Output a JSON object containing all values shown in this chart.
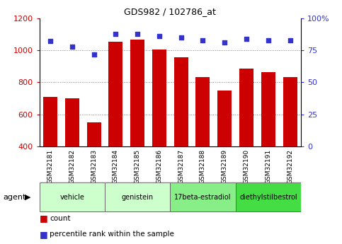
{
  "title": "GDS982 / 102786_at",
  "samples": [
    "GSM32181",
    "GSM32182",
    "GSM32183",
    "GSM32184",
    "GSM32185",
    "GSM32186",
    "GSM32187",
    "GSM32188",
    "GSM32189",
    "GSM32190",
    "GSM32191",
    "GSM32192"
  ],
  "counts": [
    710,
    700,
    550,
    1055,
    1065,
    1005,
    955,
    835,
    750,
    885,
    865,
    835
  ],
  "percentile_ranks": [
    82,
    78,
    72,
    88,
    88,
    86,
    85,
    83,
    81,
    84,
    83,
    83
  ],
  "bar_color": "#cc0000",
  "dot_color": "#3333cc",
  "ylim_left": [
    400,
    1200
  ],
  "yticks_left": [
    400,
    600,
    800,
    1000,
    1200
  ],
  "ylim_right": [
    0,
    100
  ],
  "yticks_right": [
    0,
    25,
    50,
    75,
    100
  ],
  "ylabel_left_color": "#cc0000",
  "ylabel_right_color": "#3333cc",
  "groups": [
    {
      "label": "vehicle",
      "start": 0,
      "end": 3,
      "color": "#ccffcc"
    },
    {
      "label": "genistein",
      "start": 3,
      "end": 6,
      "color": "#ccffcc"
    },
    {
      "label": "17beta-estradiol",
      "start": 6,
      "end": 9,
      "color": "#88ee88"
    },
    {
      "label": "diethylstilbestrol",
      "start": 9,
      "end": 12,
      "color": "#44dd44"
    }
  ],
  "agent_label": "agent",
  "legend_count_label": "count",
  "legend_pct_label": "percentile rank within the sample",
  "background_color": "#ffffff",
  "dotted_line_yticks": [
    600,
    800,
    1000
  ],
  "bar_bottom": 400,
  "sample_box_color": "#cccccc",
  "sample_divider_color": "#ffffff"
}
